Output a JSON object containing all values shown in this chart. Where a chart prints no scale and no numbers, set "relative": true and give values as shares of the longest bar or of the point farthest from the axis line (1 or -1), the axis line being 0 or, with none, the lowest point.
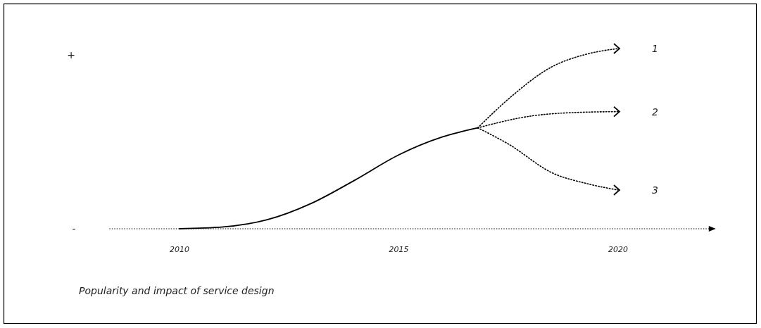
{
  "chart_data": {
    "type": "line",
    "relative": true,
    "title": "Popularity and impact of service design",
    "xlim": [
      2008.4,
      2022.1
    ],
    "xticks": [
      2010,
      2015,
      2020
    ],
    "annotations": [
      "+",
      "-"
    ],
    "series": [
      {
        "color": "#000000",
        "line_style": "solid",
        "x": [
          2010,
          2011,
          2012,
          2013,
          2014,
          2015,
          2016,
          2016.8
        ],
        "values": [
          0,
          0.01,
          0.05,
          0.14,
          0.27,
          0.41,
          0.51,
          0.56
        ]
      },
      {
        "name": "1",
        "color": "#000000",
        "line_style": "dotted",
        "x": [
          2016.8,
          2017.5,
          2018.5,
          2019.3,
          2020
        ],
        "values": [
          0.56,
          0.72,
          0.9,
          0.97,
          1
        ]
      },
      {
        "name": "2",
        "color": "#000000",
        "line_style": "dotted",
        "x": [
          2016.8,
          2018,
          2019,
          2020
        ],
        "values": [
          0.56,
          0.625,
          0.645,
          0.65
        ]
      },
      {
        "name": "3",
        "color": "#000000",
        "line_style": "dotted",
        "x": [
          2016.8,
          2017.5,
          2018.5,
          2019.3,
          2020
        ],
        "values": [
          0.56,
          0.47,
          0.31,
          0.25,
          0.215
        ]
      }
    ]
  }
}
